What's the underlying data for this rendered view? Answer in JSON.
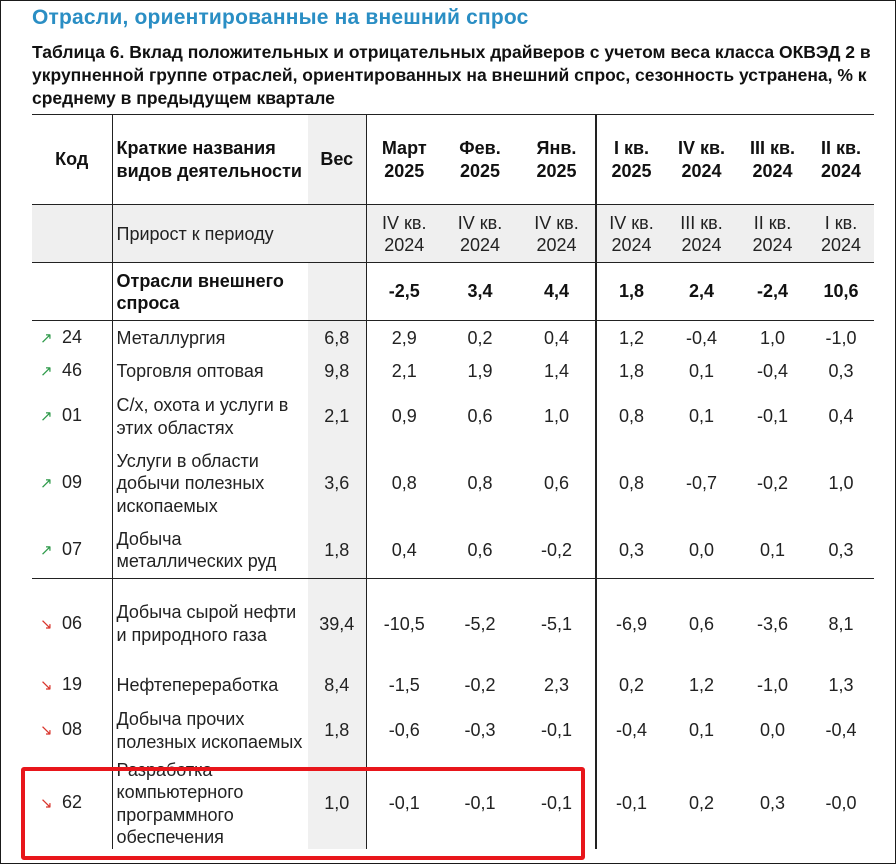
{
  "section_title": "Отрасли, ориентированные на внешний спрос",
  "caption": "Таблица 6. Вклад положительных и отрицательных драйверов с учетом веса класса ОКВЭД 2 в укрупненной группе отраслей, ориентированных на внешний спрос, сезонность устранена, % к среднему в предыдущем квартале",
  "header": {
    "code": "Код",
    "name": "Краткие названия видов деятельности",
    "weight": "Вес",
    "periods": [
      {
        "line1": "Март",
        "line2": "2025"
      },
      {
        "line1": "Фев.",
        "line2": "2025"
      },
      {
        "line1": "Янв.",
        "line2": "2025"
      },
      {
        "line1": "I кв.",
        "line2": "2025"
      },
      {
        "line1": "IV кв.",
        "line2": "2024"
      },
      {
        "line1": "III кв.",
        "line2": "2024"
      },
      {
        "line1": "II кв.",
        "line2": "2024"
      }
    ]
  },
  "growth_row": {
    "label": "Прирост к периоду",
    "periods": [
      {
        "line1": "IV кв.",
        "line2": "2024"
      },
      {
        "line1": "IV кв.",
        "line2": "2024"
      },
      {
        "line1": "IV кв.",
        "line2": "2024"
      },
      {
        "line1": "IV кв.",
        "line2": "2024"
      },
      {
        "line1": "III кв.",
        "line2": "2024"
      },
      {
        "line1": "II кв.",
        "line2": "2024"
      },
      {
        "line1": "I кв.",
        "line2": "2024"
      }
    ]
  },
  "total_row": {
    "label": "Отрасли внешнего спроса",
    "values": [
      "-2,5",
      "3,4",
      "4,4",
      "1,8",
      "2,4",
      "-2,4",
      "10,6"
    ]
  },
  "rows": [
    {
      "trend": "up",
      "arrow": "↗",
      "code": "24",
      "name": "Металлургия",
      "weight": "6,8",
      "values": [
        "2,9",
        "0,2",
        "0,4",
        "1,2",
        "-0,4",
        "1,0",
        "-1,0"
      ]
    },
    {
      "trend": "up",
      "arrow": "↗",
      "code": "46",
      "name": "Торговля оптовая",
      "weight": "9,8",
      "values": [
        "2,1",
        "1,9",
        "1,4",
        "1,8",
        "0,1",
        "-0,4",
        "0,3"
      ]
    },
    {
      "trend": "up",
      "arrow": "↗",
      "code": "01",
      "name": "С/х, охота и услуги в этих областях",
      "weight": "2,1",
      "values": [
        "0,9",
        "0,6",
        "1,0",
        "0,8",
        "0,1",
        "-0,1",
        "0,4"
      ]
    },
    {
      "trend": "up",
      "arrow": "↗",
      "code": "09",
      "name": "Услуги в области добычи полезных ископаемых",
      "weight": "3,6",
      "values": [
        "0,8",
        "0,8",
        "0,6",
        "0,8",
        "-0,7",
        "-0,2",
        "1,0"
      ]
    },
    {
      "trend": "up",
      "arrow": "↗",
      "code": "07",
      "name": "Добыча металлических руд",
      "weight": "1,8",
      "values": [
        "0,4",
        "0,6",
        "-0,2",
        "0,3",
        "0,0",
        "0,1",
        "0,3"
      ]
    },
    {
      "trend": "down",
      "arrow": "↘",
      "code": "06",
      "name": "Добыча сырой нефти и природного газа",
      "weight": "39,4",
      "values": [
        "-10,5",
        "-5,2",
        "-5,1",
        "-6,9",
        "0,6",
        "-3,6",
        "8,1"
      ]
    },
    {
      "trend": "down",
      "arrow": "↘",
      "code": "19",
      "name": "Нефтепереработка",
      "weight": "8,4",
      "values": [
        "-1,5",
        "-0,2",
        "2,3",
        "0,2",
        "1,2",
        "-1,0",
        "1,3"
      ]
    },
    {
      "trend": "down",
      "arrow": "↘",
      "code": "08",
      "name": "Добыча прочих полезных ископаемых",
      "weight": "1,8",
      "values": [
        "-0,6",
        "-0,3",
        "-0,1",
        "-0,4",
        "0,1",
        "0,0",
        "-0,4"
      ]
    },
    {
      "trend": "down",
      "arrow": "↘",
      "code": "62",
      "name": "Разработка компьютерного программного обеспечения",
      "weight": "1,0",
      "values": [
        "-0,1",
        "-0,1",
        "-0,1",
        "-0,1",
        "0,2",
        "0,3",
        "-0,0"
      ]
    }
  ],
  "colors": {
    "title": "#2a8ec4",
    "arrow_up": "#2e9a4a",
    "arrow_down": "#d9342b",
    "highlight": "#e8161b"
  }
}
